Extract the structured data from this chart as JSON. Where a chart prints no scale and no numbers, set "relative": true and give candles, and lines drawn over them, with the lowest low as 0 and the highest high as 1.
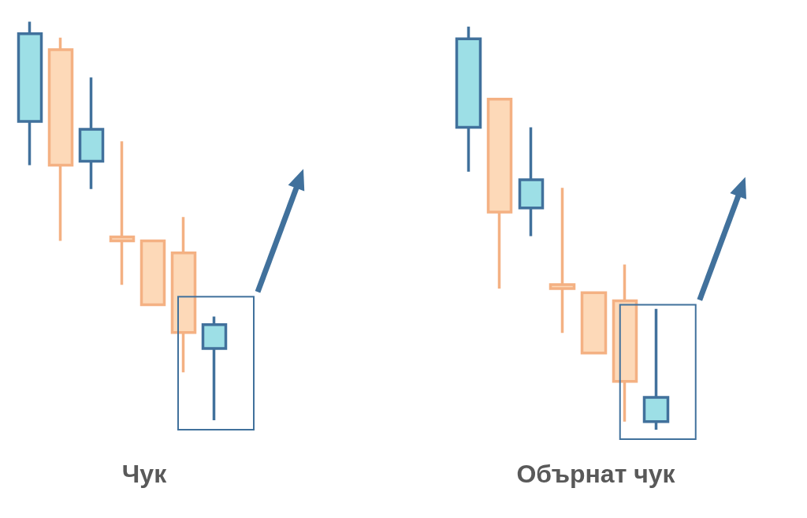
{
  "chart_data": [
    {
      "type": "candlestick",
      "title": "Чук",
      "categories": [
        null,
        null,
        null,
        null,
        null,
        null,
        null
      ],
      "relative": true,
      "ohlc": [
        [
          0.75,
          1.0,
          0.64,
          0.97
        ],
        [
          0.93,
          0.96,
          0.45,
          0.64
        ],
        [
          0.65,
          0.86,
          0.58,
          0.73
        ],
        [
          0.46,
          0.7,
          0.34,
          0.45
        ],
        [
          0.45,
          0.45,
          0.29,
          0.29
        ],
        [
          0.42,
          0.51,
          0.12,
          0.22
        ],
        [
          0.18,
          0.26,
          0,
          0.24
        ]
      ],
      "colors": [
        "#9ddfe6",
        "#fdd9b8",
        "#9ddfe6",
        "#fdd9b8",
        "#fdd9b8",
        "#fdd9b8",
        "#9ddfe6"
      ]
    },
    {
      "type": "candlestick",
      "title": "Обърнат чук",
      "categories": [
        null,
        null,
        null,
        null,
        null,
        null,
        null
      ],
      "relative": true,
      "ohlc": [
        [
          0.75,
          1.0,
          0.64,
          0.97
        ],
        [
          0.82,
          0.82,
          0.35,
          0.54
        ],
        [
          0.55,
          0.75,
          0.48,
          0.62
        ],
        [
          0.36,
          0.6,
          0.24,
          0.35
        ],
        [
          0.34,
          0.34,
          0.19,
          0.19
        ],
        [
          0.32,
          0.41,
          0.02,
          0.12
        ],
        [
          0.02,
          0.3,
          0,
          0.08
        ]
      ],
      "colors": [
        "#9ddfe6",
        "#fdd9b8",
        "#9ddfe6",
        "#fdd9b8",
        "#fdd9b8",
        "#fdd9b8",
        "#9ddfe6"
      ]
    }
  ]
}
